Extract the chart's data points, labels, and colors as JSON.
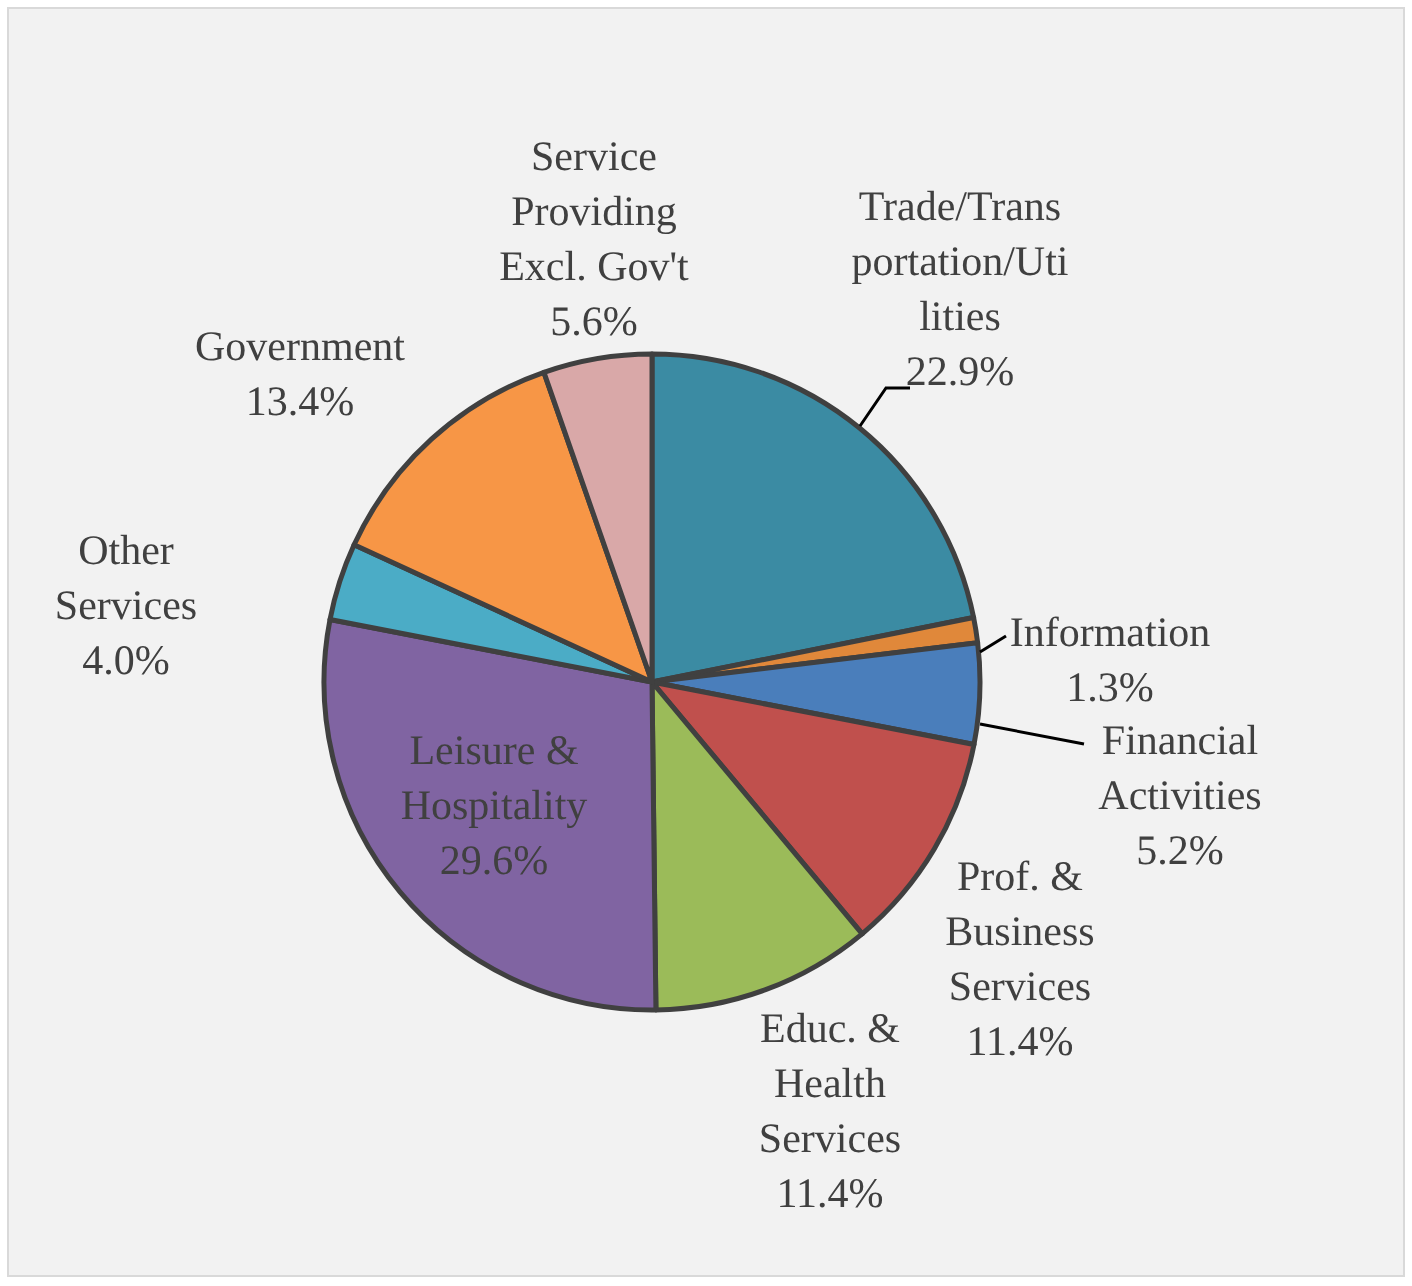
{
  "chart_data": {
    "type": "pie",
    "categories": [
      "Trade/Transportation/Utilities",
      "Information",
      "Financial Activities",
      "Prof. & Business Services",
      "Educ. & Health Services",
      "Leisure & Hospitality",
      "Other Services",
      "Government",
      "Service Providing Excl. Gov't"
    ],
    "values": [
      22.9,
      1.3,
      5.2,
      11.4,
      11.4,
      29.6,
      4.0,
      13.4,
      5.6
    ],
    "value_labels": [
      "22.9%",
      "1.3%",
      "5.2%",
      "11.4%",
      "11.4%",
      "29.6%",
      "4.0%",
      "13.4%",
      "5.6%"
    ],
    "colors": [
      "#3b8ba3",
      "#e0883a",
      "#4a7ebb",
      "#c0504d",
      "#9bbb59",
      "#8064a2",
      "#4bacc6",
      "#f79646",
      "#d9a8a8"
    ],
    "legend": false
  }
}
